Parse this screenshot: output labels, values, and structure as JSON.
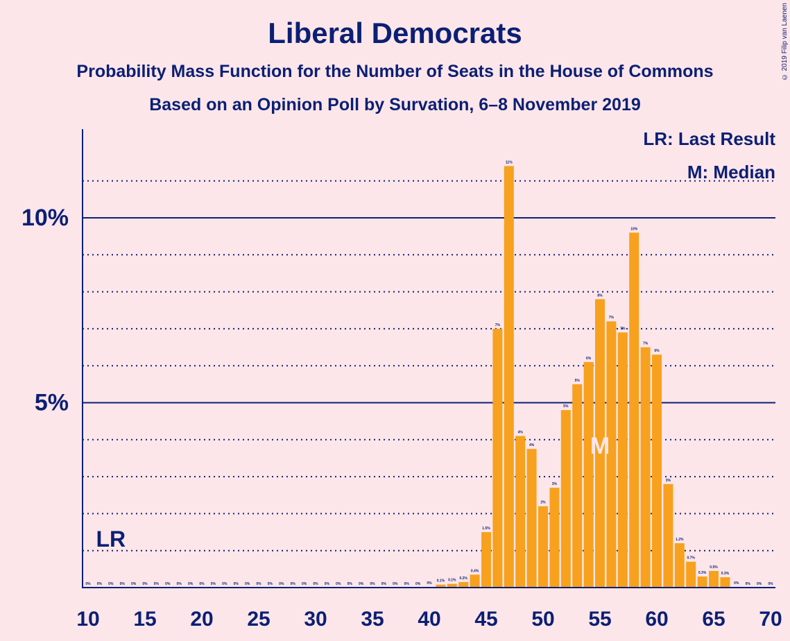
{
  "title": "Liberal Democrats",
  "subtitle": "Probability Mass Function for the Number of Seats in the House of Commons",
  "subtitle2": "Based on an Opinion Poll by Survation, 6–8 November 2019",
  "copyright": "© 2019 Filip van Laenen",
  "legend": {
    "lr": "LR: Last Result",
    "median": "M: Median"
  },
  "colors": {
    "bar": "#F7A11E",
    "axis": "#0B1F74",
    "background": "#FDE6E9",
    "median_marker": "#FDE6E9"
  },
  "chart_data": {
    "type": "bar",
    "x": [
      10,
      11,
      12,
      13,
      14,
      15,
      16,
      17,
      18,
      19,
      20,
      21,
      22,
      23,
      24,
      25,
      26,
      27,
      28,
      29,
      30,
      31,
      32,
      33,
      34,
      35,
      36,
      37,
      38,
      39,
      40,
      41,
      42,
      43,
      44,
      45,
      46,
      47,
      48,
      49,
      50,
      51,
      52,
      53,
      54,
      55,
      56,
      57,
      58,
      59,
      60,
      61,
      62,
      63,
      64,
      65,
      66,
      67,
      68,
      69,
      70
    ],
    "values": [
      0,
      0,
      0,
      0,
      0,
      0,
      0,
      0,
      0,
      0,
      0,
      0,
      0,
      0,
      0,
      0,
      0,
      0,
      0,
      0,
      0,
      0,
      0,
      0,
      0,
      0,
      0,
      0,
      0,
      0,
      0.02,
      0.08,
      0.1,
      0.15,
      0.35,
      1.5,
      7.0,
      11.4,
      4.1,
      3.75,
      2.2,
      2.7,
      4.8,
      5.5,
      6.1,
      7.8,
      7.2,
      6.9,
      9.6,
      6.5,
      6.3,
      2.8,
      1.2,
      0.7,
      0.3,
      0.45,
      0.28,
      0.02,
      0,
      0,
      0
    ],
    "data_labels": [
      "0%",
      "0%",
      "0%",
      "0%",
      "0%",
      "0%",
      "0%",
      "0%",
      "0%",
      "0%",
      "0%",
      "0%",
      "0%",
      "0%",
      "0%",
      "0%",
      "0%",
      "0%",
      "0%",
      "0%",
      "0%",
      "0%",
      "0%",
      "0%",
      "0%",
      "0%",
      "0%",
      "0%",
      "0%",
      "0%",
      "0%",
      "0.1%",
      "0.1%",
      "0.2%",
      "0.4%",
      "1.5%",
      "7%",
      "11%",
      "4%",
      "4%",
      "2%",
      "3%",
      "5%",
      "5%",
      "6%",
      "8%",
      "7%",
      "7%",
      "10%",
      "7%",
      "6%",
      "3%",
      "1.2%",
      "0.7%",
      "0.3%",
      "0.5%",
      "0.3%",
      "0%",
      "0%",
      "0%",
      "0%"
    ],
    "xlim": [
      10,
      70
    ],
    "ylim": [
      0,
      12.4
    ],
    "xticks": [
      10,
      15,
      20,
      25,
      30,
      35,
      40,
      45,
      50,
      55,
      60,
      65,
      70
    ],
    "xtick_labels": [
      "10",
      "15",
      "20",
      "25",
      "30",
      "35",
      "40",
      "45",
      "50",
      "55",
      "60",
      "65",
      "70"
    ],
    "yticks": [
      5,
      10
    ],
    "ytick_labels": [
      "5%",
      "10%"
    ],
    "dotted_grid": [
      1,
      2,
      3,
      4,
      6,
      7,
      8,
      9,
      11
    ],
    "last_result": {
      "seat": 12,
      "label": "LR"
    },
    "median": {
      "seat": 55,
      "label": "M"
    },
    "legend_position": "top-right"
  }
}
